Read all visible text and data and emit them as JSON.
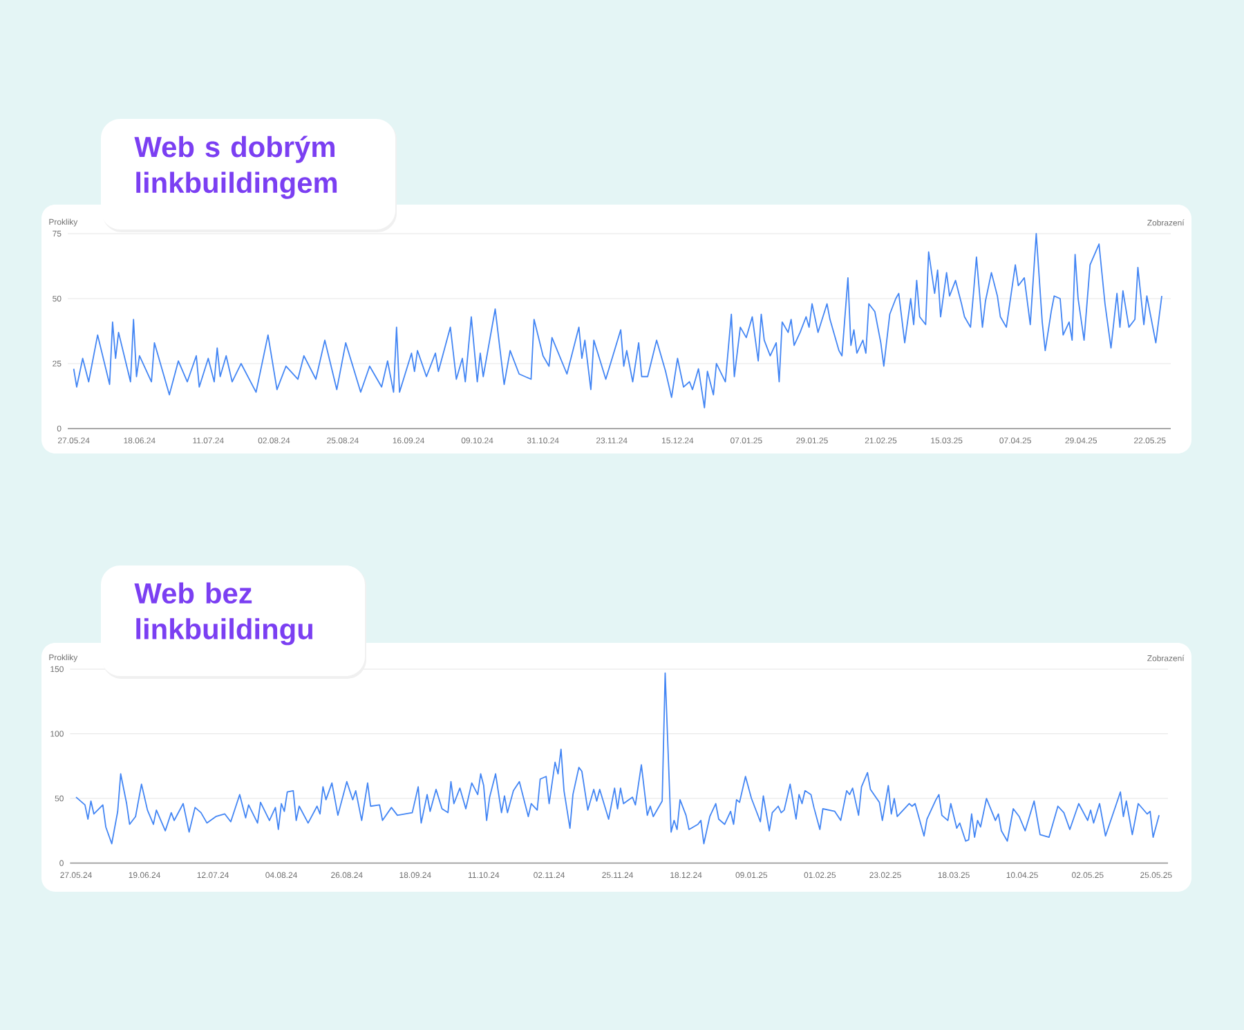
{
  "chart_data": [
    {
      "type": "line",
      "title": "Web s dobrým linkbuildingem",
      "ylabel": "Prokliky",
      "y2label": "Zobrazení",
      "color": "#4285f4",
      "grid": "y",
      "xlim": [
        "2024-05-25",
        "2025-05-29"
      ],
      "ylim": [
        0,
        75
      ],
      "yticks": [
        0,
        25,
        50,
        75
      ],
      "xticks": [
        {
          "value": "2024-05-27",
          "label": "27.05.24"
        },
        {
          "value": "2024-06-18",
          "label": "18.06.24"
        },
        {
          "value": "2024-07-11",
          "label": "11.07.24"
        },
        {
          "value": "2024-08-02",
          "label": "02.08.24"
        },
        {
          "value": "2024-08-25",
          "label": "25.08.24"
        },
        {
          "value": "2024-09-16",
          "label": "16.09.24"
        },
        {
          "value": "2024-10-09",
          "label": "09.10.24"
        },
        {
          "value": "2024-10-31",
          "label": "31.10.24"
        },
        {
          "value": "2024-11-23",
          "label": "23.11.24"
        },
        {
          "value": "2024-12-15",
          "label": "15.12.24"
        },
        {
          "value": "2025-01-07",
          "label": "07.01.25"
        },
        {
          "value": "2025-01-29",
          "label": "29.01.25"
        },
        {
          "value": "2025-02-21",
          "label": "21.02.25"
        },
        {
          "value": "2025-03-15",
          "label": "15.03.25"
        },
        {
          "value": "2025-04-07",
          "label": "07.04.25"
        },
        {
          "value": "2025-04-29",
          "label": "29.04.25"
        },
        {
          "value": "2025-05-22",
          "label": "22.05.25"
        }
      ],
      "x": [
        "2024-05-27",
        "2024-05-28",
        "2024-05-30",
        "2024-06-01",
        "2024-06-04",
        "2024-06-08",
        "2024-06-09",
        "2024-06-10",
        "2024-06-11",
        "2024-06-15",
        "2024-06-16",
        "2024-06-17",
        "2024-06-18",
        "2024-06-22",
        "2024-06-23",
        "2024-06-28",
        "2024-07-01",
        "2024-07-04",
        "2024-07-07",
        "2024-07-08",
        "2024-07-11",
        "2024-07-13",
        "2024-07-14",
        "2024-07-15",
        "2024-07-17",
        "2024-07-19",
        "2024-07-22",
        "2024-07-27",
        "2024-07-31",
        "2024-08-03",
        "2024-08-06",
        "2024-08-10",
        "2024-08-12",
        "2024-08-16",
        "2024-08-19",
        "2024-08-23",
        "2024-08-26",
        "2024-08-31",
        "2024-09-03",
        "2024-09-07",
        "2024-09-09",
        "2024-09-11",
        "2024-09-12",
        "2024-09-13",
        "2024-09-17",
        "2024-09-18",
        "2024-09-19",
        "2024-09-22",
        "2024-09-25",
        "2024-09-26",
        "2024-09-30",
        "2024-10-02",
        "2024-10-04",
        "2024-10-05",
        "2024-10-07",
        "2024-10-09",
        "2024-10-10",
        "2024-10-11",
        "2024-10-15",
        "2024-10-18",
        "2024-10-20",
        "2024-10-23",
        "2024-10-27",
        "2024-10-28",
        "2024-10-31",
        "2024-11-02",
        "2024-11-03",
        "2024-11-08",
        "2024-11-12",
        "2024-11-13",
        "2024-11-14",
        "2024-11-16",
        "2024-11-17",
        "2024-11-21",
        "2024-11-26",
        "2024-11-27",
        "2024-11-28",
        "2024-11-30",
        "2024-12-02",
        "2024-12-03",
        "2024-12-05",
        "2024-12-08",
        "2024-12-11",
        "2024-12-13",
        "2024-12-15",
        "2024-12-17",
        "2024-12-19",
        "2024-12-20",
        "2024-12-22",
        "2024-12-24",
        "2024-12-25",
        "2024-12-27",
        "2024-12-28",
        "2024-12-31",
        "2025-01-02",
        "2025-01-03",
        "2025-01-05",
        "2025-01-07",
        "2025-01-09",
        "2025-01-11",
        "2025-01-12",
        "2025-01-13",
        "2025-01-15",
        "2025-01-17",
        "2025-01-18",
        "2025-01-19",
        "2025-01-21",
        "2025-01-22",
        "2025-01-23",
        "2025-01-25",
        "2025-01-27",
        "2025-01-28",
        "2025-01-29",
        "2025-01-31",
        "2025-02-03",
        "2025-02-04",
        "2025-02-07",
        "2025-02-08",
        "2025-02-10",
        "2025-02-11",
        "2025-02-12",
        "2025-02-13",
        "2025-02-15",
        "2025-02-16",
        "2025-02-17",
        "2025-02-19",
        "2025-02-21",
        "2025-02-22",
        "2025-02-24",
        "2025-02-26",
        "2025-02-27",
        "2025-03-01",
        "2025-03-03",
        "2025-03-04",
        "2025-03-05",
        "2025-03-06",
        "2025-03-08",
        "2025-03-09",
        "2025-03-11",
        "2025-03-12",
        "2025-03-13",
        "2025-03-15",
        "2025-03-16",
        "2025-03-18",
        "2025-03-20",
        "2025-03-21",
        "2025-03-23",
        "2025-03-24",
        "2025-03-25",
        "2025-03-27",
        "2025-03-28",
        "2025-03-30",
        "2025-04-01",
        "2025-04-02",
        "2025-04-04",
        "2025-04-07",
        "2025-04-08",
        "2025-04-10",
        "2025-04-12",
        "2025-04-14",
        "2025-04-16",
        "2025-04-17",
        "2025-04-19",
        "2025-04-20",
        "2025-04-22",
        "2025-04-23",
        "2025-04-25",
        "2025-04-26",
        "2025-04-27",
        "2025-04-28",
        "2025-04-30",
        "2025-05-02",
        "2025-05-05",
        "2025-05-07",
        "2025-05-09",
        "2025-05-11",
        "2025-05-12",
        "2025-05-13",
        "2025-05-15",
        "2025-05-17",
        "2025-05-18",
        "2025-05-20",
        "2025-05-21",
        "2025-05-24",
        "2025-05-26"
      ],
      "values": [
        23,
        16,
        27,
        18,
        36,
        17,
        41,
        27,
        37,
        18,
        42,
        20,
        28,
        18,
        33,
        13,
        26,
        18,
        28,
        16,
        27,
        18,
        31,
        20,
        28,
        18,
        25,
        14,
        36,
        15,
        24,
        19,
        28,
        19,
        34,
        15,
        33,
        14,
        24,
        16,
        26,
        14,
        39,
        14,
        29,
        22,
        30,
        20,
        29,
        22,
        39,
        19,
        27,
        18,
        43,
        18,
        29,
        20,
        46,
        17,
        30,
        21,
        19,
        42,
        28,
        24,
        35,
        21,
        39,
        27,
        34,
        15,
        34,
        19,
        38,
        24,
        30,
        18,
        33,
        20,
        20,
        34,
        22,
        12,
        27,
        16,
        18,
        15,
        23,
        8,
        22,
        13,
        25,
        18,
        44,
        20,
        39,
        35,
        43,
        26,
        44,
        34,
        28,
        33,
        18,
        41,
        37,
        42,
        32,
        37,
        43,
        39,
        48,
        37,
        48,
        42,
        30,
        28,
        58,
        32,
        38,
        29,
        34,
        29,
        48,
        45,
        33,
        24,
        44,
        50,
        52,
        33,
        50,
        40,
        57,
        43,
        40,
        68,
        52,
        61,
        43,
        60,
        51,
        57,
        48,
        43,
        39,
        52,
        66,
        39,
        49,
        60,
        51,
        43,
        39,
        63,
        55,
        58,
        40,
        75,
        41,
        30,
        45,
        51,
        50,
        36,
        41,
        34,
        67,
        50,
        34,
        63,
        71,
        48,
        31,
        52,
        39,
        53,
        39,
        42,
        62,
        40,
        51,
        33,
        51
      ]
    },
    {
      "type": "line",
      "title": "Web bez linkbuildingu",
      "ylabel": "Prokliky",
      "y2label": "Zobrazení",
      "color": "#4285f4",
      "grid": "y",
      "xlim": [
        "2024-05-25",
        "2025-05-29"
      ],
      "ylim": [
        0,
        150
      ],
      "yticks": [
        0,
        50,
        100,
        150
      ],
      "xticks": [
        {
          "value": "2024-05-27",
          "label": "27.05.24"
        },
        {
          "value": "2024-06-19",
          "label": "19.06.24"
        },
        {
          "value": "2024-07-12",
          "label": "12.07.24"
        },
        {
          "value": "2024-08-04",
          "label": "04.08.24"
        },
        {
          "value": "2024-08-26",
          "label": "26.08.24"
        },
        {
          "value": "2024-09-18",
          "label": "18.09.24"
        },
        {
          "value": "2024-10-11",
          "label": "11.10.24"
        },
        {
          "value": "2024-11-02",
          "label": "02.11.24"
        },
        {
          "value": "2024-11-25",
          "label": "25.11.24"
        },
        {
          "value": "2024-12-18",
          "label": "18.12.24"
        },
        {
          "value": "2025-01-09",
          "label": "09.01.25"
        },
        {
          "value": "2025-02-01",
          "label": "01.02.25"
        },
        {
          "value": "2025-02-23",
          "label": "23.02.25"
        },
        {
          "value": "2025-03-18",
          "label": "18.03.25"
        },
        {
          "value": "2025-04-10",
          "label": "10.04.25"
        },
        {
          "value": "2025-05-02",
          "label": "02.05.25"
        },
        {
          "value": "2025-05-25",
          "label": "25.05.25"
        }
      ],
      "x": [
        "2024-05-27",
        "2024-05-30",
        "2024-05-31",
        "2024-06-01",
        "2024-06-02",
        "2024-06-05",
        "2024-06-06",
        "2024-06-08",
        "2024-06-10",
        "2024-06-11",
        "2024-06-13",
        "2024-06-14",
        "2024-06-16",
        "2024-06-18",
        "2024-06-20",
        "2024-06-22",
        "2024-06-23",
        "2024-06-26",
        "2024-06-28",
        "2024-06-29",
        "2024-07-02",
        "2024-07-04",
        "2024-07-06",
        "2024-07-08",
        "2024-07-10",
        "2024-07-13",
        "2024-07-16",
        "2024-07-18",
        "2024-07-21",
        "2024-07-23",
        "2024-07-24",
        "2024-07-27",
        "2024-07-28",
        "2024-07-31",
        "2024-08-02",
        "2024-08-03",
        "2024-08-04",
        "2024-08-05",
        "2024-08-06",
        "2024-08-08",
        "2024-08-09",
        "2024-08-10",
        "2024-08-13",
        "2024-08-16",
        "2024-08-17",
        "2024-08-18",
        "2024-08-19",
        "2024-08-21",
        "2024-08-23",
        "2024-08-26",
        "2024-08-28",
        "2024-08-29",
        "2024-08-31",
        "2024-09-02",
        "2024-09-03",
        "2024-09-06",
        "2024-09-07",
        "2024-09-10",
        "2024-09-12",
        "2024-09-17",
        "2024-09-19",
        "2024-09-20",
        "2024-09-22",
        "2024-09-23",
        "2024-09-25",
        "2024-09-27",
        "2024-09-29",
        "2024-09-30",
        "2024-10-01",
        "2024-10-03",
        "2024-10-05",
        "2024-10-07",
        "2024-10-09",
        "2024-10-10",
        "2024-10-11",
        "2024-10-12",
        "2024-10-13",
        "2024-10-15",
        "2024-10-17",
        "2024-10-18",
        "2024-10-19",
        "2024-10-21",
        "2024-10-23",
        "2024-10-26",
        "2024-10-27",
        "2024-10-29",
        "2024-10-30",
        "2024-11-01",
        "2024-11-02",
        "2024-11-04",
        "2024-11-05",
        "2024-11-06",
        "2024-11-07",
        "2024-11-09",
        "2024-11-10",
        "2024-11-12",
        "2024-11-13",
        "2024-11-15",
        "2024-11-17",
        "2024-11-18",
        "2024-11-19",
        "2024-11-22",
        "2024-11-24",
        "2024-11-25",
        "2024-11-26",
        "2024-11-27",
        "2024-11-30",
        "2024-12-01",
        "2024-12-03",
        "2024-12-05",
        "2024-12-06",
        "2024-12-07",
        "2024-12-10",
        "2024-12-11",
        "2024-12-13",
        "2024-12-14",
        "2024-12-15",
        "2024-12-16",
        "2024-12-18",
        "2024-12-19",
        "2024-12-22",
        "2024-12-23",
        "2024-12-24",
        "2024-12-26",
        "2024-12-28",
        "2024-12-29",
        "2024-12-31",
        "2025-01-02",
        "2025-01-03",
        "2025-01-04",
        "2025-01-05",
        "2025-01-07",
        "2025-01-09",
        "2025-01-12",
        "2025-01-13",
        "2025-01-15",
        "2025-01-16",
        "2025-01-18",
        "2025-01-19",
        "2025-01-20",
        "2025-01-22",
        "2025-01-24",
        "2025-01-25",
        "2025-01-26",
        "2025-01-27",
        "2025-01-29",
        "2025-01-30",
        "2025-02-01",
        "2025-02-02",
        "2025-02-06",
        "2025-02-08",
        "2025-02-10",
        "2025-02-11",
        "2025-02-12",
        "2025-02-14",
        "2025-02-15",
        "2025-02-17",
        "2025-02-18",
        "2025-02-21",
        "2025-02-22",
        "2025-02-24",
        "2025-02-25",
        "2025-02-26",
        "2025-02-27",
        "2025-03-03",
        "2025-03-04",
        "2025-03-05",
        "2025-03-08",
        "2025-03-09",
        "2025-03-12",
        "2025-03-13",
        "2025-03-14",
        "2025-03-16",
        "2025-03-17",
        "2025-03-19",
        "2025-03-20",
        "2025-03-22",
        "2025-03-23",
        "2025-03-24",
        "2025-03-25",
        "2025-03-26",
        "2025-03-27",
        "2025-03-29",
        "2025-04-01",
        "2025-04-02",
        "2025-04-03",
        "2025-04-05",
        "2025-04-07",
        "2025-04-09",
        "2025-04-11",
        "2025-04-14",
        "2025-04-16",
        "2025-04-19",
        "2025-04-22",
        "2025-04-24",
        "2025-04-26",
        "2025-04-29",
        "2025-05-02",
        "2025-05-03",
        "2025-05-04",
        "2025-05-06",
        "2025-05-08",
        "2025-05-13",
        "2025-05-14",
        "2025-05-15",
        "2025-05-17",
        "2025-05-19",
        "2025-05-22",
        "2025-05-23",
        "2025-05-24",
        "2025-05-26"
      ],
      "values": [
        51,
        45,
        34,
        48,
        38,
        45,
        28,
        15,
        40,
        69,
        46,
        30,
        36,
        61,
        41,
        30,
        41,
        25,
        39,
        33,
        46,
        24,
        43,
        39,
        31,
        36,
        38,
        32,
        53,
        35,
        45,
        31,
        47,
        33,
        43,
        26,
        46,
        40,
        55,
        56,
        33,
        44,
        31,
        44,
        38,
        59,
        49,
        62,
        37,
        63,
        49,
        56,
        33,
        62,
        44,
        45,
        33,
        43,
        37,
        39,
        59,
        31,
        53,
        40,
        57,
        42,
        39,
        63,
        46,
        58,
        42,
        62,
        53,
        69,
        60,
        33,
        51,
        69,
        39,
        52,
        39,
        56,
        63,
        36,
        46,
        41,
        65,
        67,
        46,
        78,
        69,
        88,
        56,
        27,
        53,
        74,
        71,
        41,
        57,
        48,
        57,
        34,
        58,
        42,
        58,
        46,
        51,
        45,
        76,
        37,
        44,
        36,
        48,
        147,
        24,
        33,
        26,
        49,
        37,
        26,
        30,
        33,
        15,
        36,
        46,
        34,
        30,
        40,
        30,
        49,
        47,
        67,
        50,
        32,
        52,
        25,
        39,
        44,
        39,
        41,
        61,
        34,
        53,
        46,
        56,
        53,
        43,
        26,
        42,
        40,
        33,
        56,
        53,
        58,
        37,
        59,
        70,
        57,
        47,
        33,
        60,
        38,
        50,
        36,
        46,
        44,
        46,
        21,
        34,
        49,
        53,
        37,
        33,
        46,
        27,
        31,
        17,
        18,
        38,
        20,
        33,
        28,
        50,
        33,
        38,
        25,
        17,
        42,
        36,
        25,
        48,
        22,
        20,
        44,
        39,
        26,
        46,
        33,
        41,
        31,
        46,
        21,
        55,
        36,
        48,
        22,
        46,
        38,
        40,
        20,
        37
      ]
    }
  ]
}
